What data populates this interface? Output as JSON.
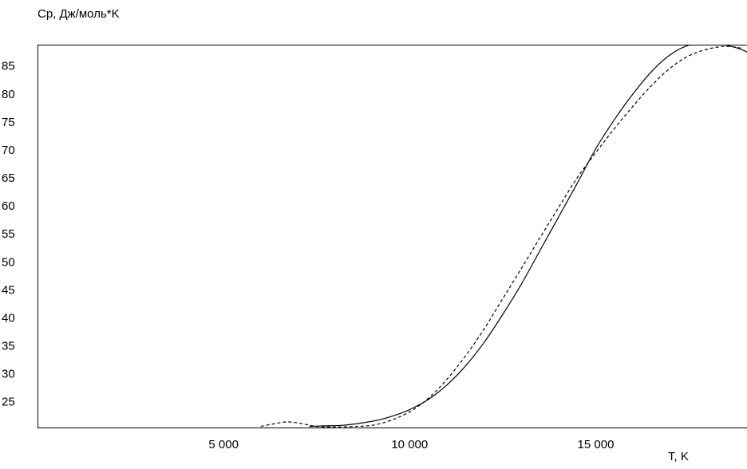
{
  "chart_data": {
    "type": "line",
    "title": "",
    "xlabel": "T, K",
    "ylabel": "Cp, Дж/моль*K",
    "xlim": [
      0,
      19300
    ],
    "ylim": [
      20.4,
      88.8
    ],
    "grid": false,
    "x_ticks": [
      5000,
      10000,
      15000
    ],
    "x_tick_labels": [
      "5 000",
      "10 000",
      "15 000"
    ],
    "y_ticks": [
      25,
      30,
      35,
      40,
      45,
      50,
      55,
      60,
      65,
      70,
      75,
      80,
      85
    ],
    "y_tick_labels": [
      "25",
      "30",
      "35",
      "40",
      "45",
      "50",
      "55",
      "60",
      "65",
      "70",
      "75",
      "80",
      "85"
    ],
    "series": [
      {
        "style": "solid",
        "color": "#000000",
        "x": [
          7300,
          7700,
          8200,
          8700,
          9200,
          9700,
          10000,
          10500,
          11000,
          11500,
          12000,
          12500,
          13000,
          13500,
          14000,
          14500,
          15000,
          15500,
          16000,
          16500,
          17000,
          17500,
          18000,
          18500,
          19000,
          19300
        ],
        "y": [
          20.6,
          20.7,
          20.8,
          21.2,
          21.8,
          22.8,
          23.6,
          25.4,
          28.0,
          31.4,
          35.6,
          40.6,
          46.0,
          52.0,
          58.0,
          64.0,
          70.2,
          75.4,
          80.0,
          84.0,
          87.0,
          88.7,
          89.0,
          88.7,
          87.7,
          86.3
        ]
      },
      {
        "style": "dashed",
        "color": "#000000",
        "x": [
          6000,
          6300,
          6700,
          7100,
          7500,
          8000,
          8500,
          9000,
          9500,
          10000,
          10500,
          11000,
          11500,
          12000,
          12500,
          13000,
          13500,
          14000,
          14500,
          15000,
          15500,
          16000,
          16500,
          17000,
          17500,
          18000,
          18500,
          18900
        ],
        "y": [
          20.6,
          21.0,
          21.4,
          21.1,
          20.6,
          20.5,
          20.6,
          20.8,
          21.7,
          23.2,
          25.6,
          29.0,
          33.2,
          38.0,
          43.4,
          48.8,
          54.3,
          59.7,
          65.0,
          69.5,
          73.8,
          77.8,
          81.5,
          84.6,
          86.8,
          88.0,
          88.5,
          88.2
        ]
      }
    ]
  }
}
